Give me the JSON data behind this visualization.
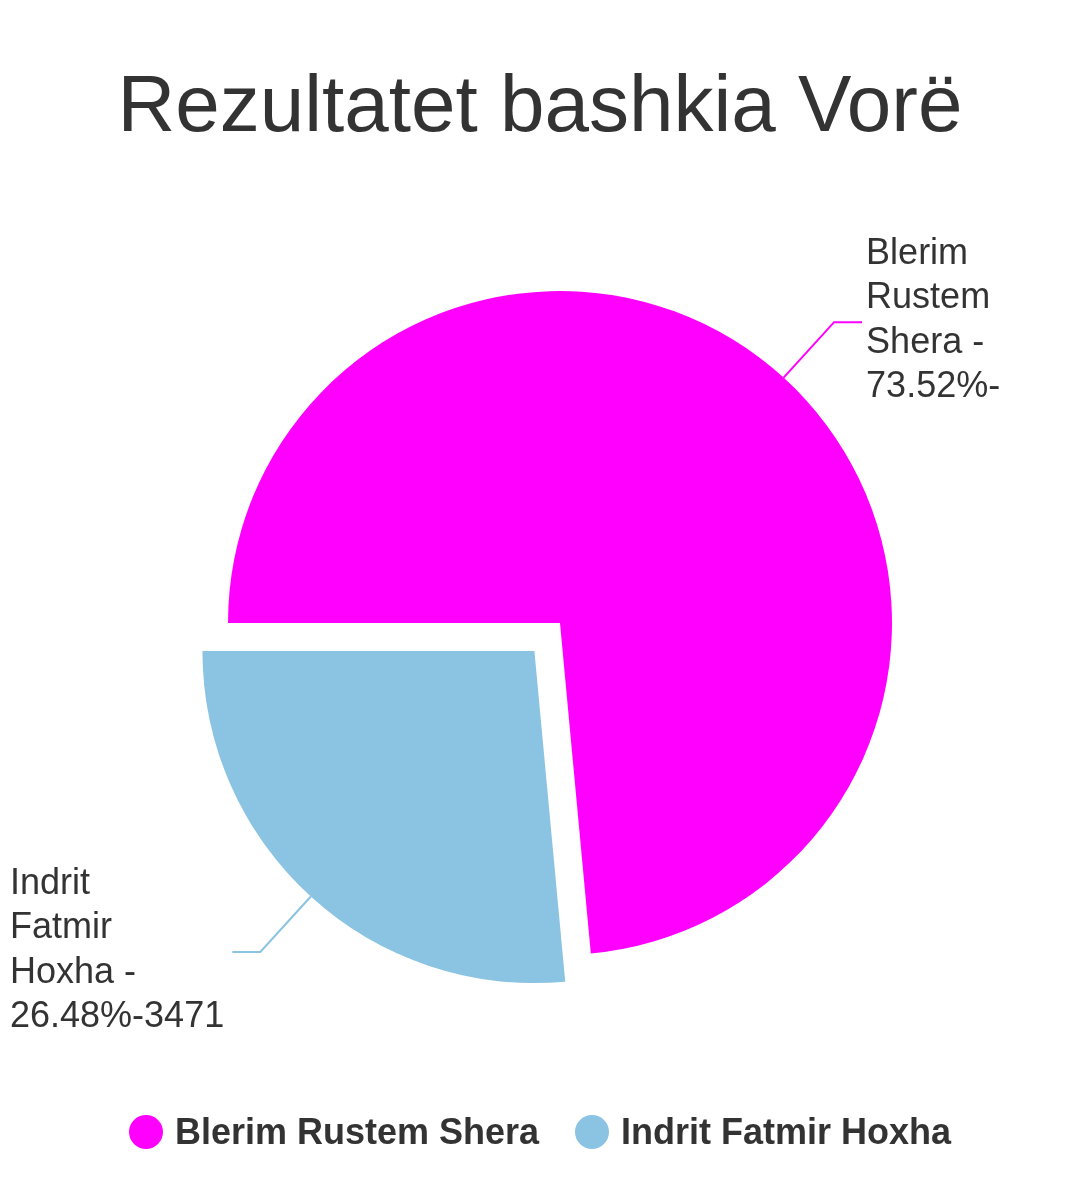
{
  "chart_data": {
    "type": "pie",
    "title": "Rezultatet bashkia Vorë",
    "categories": [
      "Blerim Rustem Shera",
      "Indrit Fatmir Hoxha"
    ],
    "values": [
      73.52,
      26.48
    ],
    "colors": [
      "#ff00ff",
      "#8bc3e2"
    ],
    "annotations": [
      "Blerim Rustem Shera - 73.52%-",
      "Indrit Fatmir Hoxha - 26.48%-3471"
    ],
    "legend": "bottom"
  }
}
